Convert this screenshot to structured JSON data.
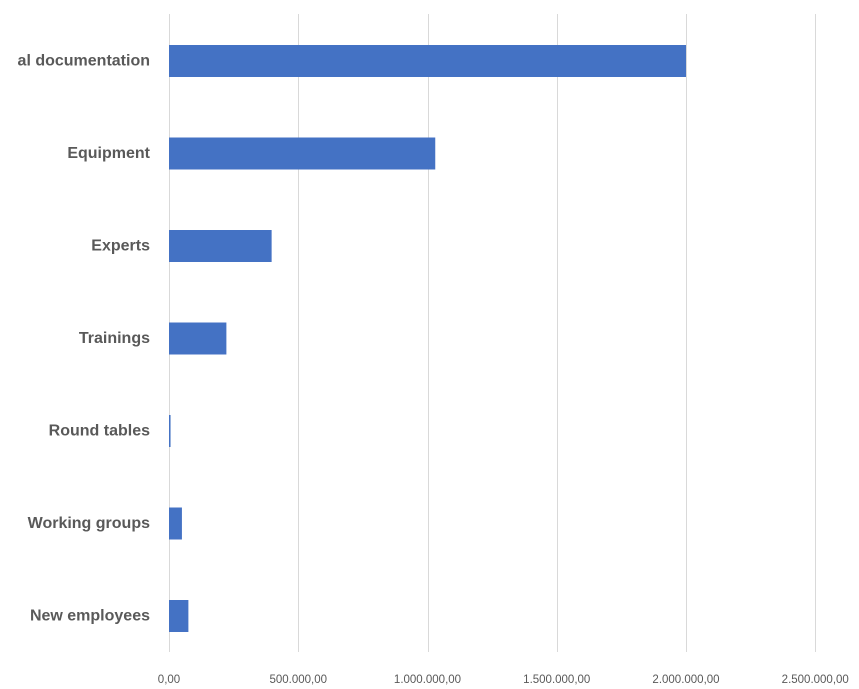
{
  "chart_data": {
    "type": "bar",
    "orientation": "horizontal",
    "categories": [
      "al documentation",
      "Equipment",
      "Experts",
      "Trainings",
      "Round tables",
      "Working groups",
      "New employees"
    ],
    "values": [
      2000000,
      1030000,
      397000,
      222000,
      6000,
      50000,
      75000
    ],
    "xlim": [
      0,
      2500000
    ],
    "x_ticks": [
      0,
      500000,
      1000000,
      1500000,
      2000000,
      2500000
    ],
    "x_tick_labels": [
      "0,00",
      "500.000,00",
      "1.000.000,00",
      "1.500.000,00",
      "2.000.000,00",
      "2.500.000,00"
    ],
    "grid": "vertical",
    "bar_color": "#4472C4",
    "gridline_color": "#D9D9D9",
    "label_color": "#595959"
  }
}
